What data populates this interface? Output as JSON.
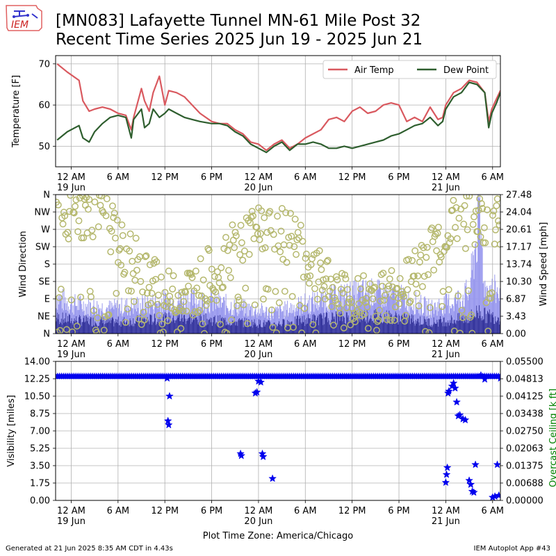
{
  "header": {
    "logo_text": "IEM",
    "title_line1": "[MN083] Lafayette Tunnel MN-61 Mile Post 32",
    "title_line2": "Recent Time Series 2025 Jun 19 - 2025 Jun 21"
  },
  "footer": {
    "generated": "Generated at 21 Jun 2025 8:35 AM CDT in 4.43s",
    "app": "IEM Autoplot App #43"
  },
  "colors": {
    "air_temp": "#d9595f",
    "dew_point": "#2e5e2e",
    "wind_gust": "#9999ee",
    "wind_speed": "#33339a",
    "wind_dir": "#b5b86e",
    "visibility": "#0000ee",
    "ceiling_label": "#008000",
    "grid": "#b0b0b0"
  },
  "chart_data": [
    {
      "type": "line",
      "title": "",
      "ylabel": "Temperature [F]",
      "ylim": [
        45,
        72
      ],
      "y_ticks": [
        50,
        60,
        70
      ],
      "x_range_hours": [
        -2,
        55
      ],
      "x_tick_hours": [
        0,
        6,
        12,
        18,
        24,
        30,
        36,
        42,
        48,
        54
      ],
      "x_tick_labels": [
        "12 AM\n19 Jun",
        "6 AM",
        "12 PM",
        "6 PM",
        "12 AM\n20 Jun",
        "6 AM",
        "12 PM",
        "6 PM",
        "12 AM\n21 Jun",
        "6 AM"
      ],
      "legend": "top-right",
      "grid": true,
      "series": [
        {
          "name": "Air Temp",
          "x": [
            -1.8,
            -0.5,
            1,
            1.5,
            2.3,
            3,
            4,
            5,
            6,
            7,
            7.7,
            8,
            9,
            9.4,
            10,
            10.5,
            11.3,
            12,
            12.5,
            13.5,
            14.5,
            15.5,
            16.5,
            18,
            19,
            20,
            21,
            22,
            23,
            24,
            25,
            26,
            27,
            28,
            29,
            30,
            31,
            32,
            33,
            34,
            35,
            36,
            37,
            38,
            39,
            40,
            41,
            42,
            43,
            44,
            45,
            46,
            47,
            47.6,
            48,
            49,
            50,
            51,
            52,
            53,
            53.5,
            53.9,
            54.5,
            55
          ],
          "values": [
            70,
            68,
            66,
            61,
            58.5,
            59,
            59.5,
            59,
            58,
            57.5,
            54,
            57,
            64,
            61,
            58.5,
            63,
            67,
            60,
            63.5,
            63,
            62,
            60,
            58,
            56,
            55.5,
            55.5,
            54,
            53,
            51,
            50.5,
            49,
            50.5,
            51.5,
            49.5,
            50.5,
            52,
            53,
            54,
            56.5,
            57,
            56,
            58.5,
            59.5,
            58,
            58.5,
            60,
            60.5,
            60,
            56,
            57,
            56,
            59.5,
            56.5,
            57,
            60,
            63,
            64,
            66,
            65.5,
            63,
            56,
            59,
            61.5,
            63.5
          ]
        },
        {
          "name": "Dew Point",
          "x": [
            -1.8,
            -0.5,
            1,
            1.5,
            2.3,
            3,
            4,
            5,
            6,
            7,
            7.7,
            8,
            9,
            9.4,
            10,
            10.5,
            11.3,
            12,
            12.5,
            13.5,
            14.5,
            15.5,
            16.5,
            18,
            19,
            20,
            21,
            22,
            23,
            24,
            25,
            26,
            27,
            28,
            29,
            30,
            31,
            32,
            33,
            34,
            35,
            36,
            37,
            38,
            39,
            40,
            41,
            42,
            43,
            44,
            45,
            46,
            47,
            47.6,
            48,
            49,
            50,
            51,
            52,
            53,
            53.5,
            53.9,
            54.5,
            55
          ],
          "values": [
            51.5,
            53.5,
            55,
            52,
            51,
            53.5,
            55.5,
            57,
            57.5,
            57,
            52,
            56.5,
            59,
            54.5,
            55.5,
            59,
            57,
            58,
            59,
            58,
            57,
            56.5,
            56,
            55.5,
            55.5,
            55,
            53.5,
            52.5,
            50.5,
            49.5,
            48.5,
            50,
            51,
            49,
            50.5,
            50.5,
            51,
            50.5,
            49.5,
            49.5,
            50,
            49.5,
            50,
            50.5,
            51,
            51.5,
            52.5,
            53,
            54,
            55,
            55.5,
            57,
            55,
            56,
            59,
            62,
            63,
            65.5,
            65,
            63,
            54.5,
            58,
            60.5,
            63
          ]
        }
      ]
    },
    {
      "type": "scatter",
      "title": "",
      "ylabel": "Wind Direction",
      "y2label": "Wind Speed [mph]",
      "ylim": [
        0,
        360
      ],
      "y2lim": [
        0,
        27.48
      ],
      "y_tick_labels": [
        "N",
        "NE",
        "E",
        "SE",
        "S",
        "SW",
        "W",
        "NW",
        "N"
      ],
      "y2_tick_labels": [
        "0.00",
        "3.43",
        "6.87",
        "10.30",
        "13.74",
        "17.17",
        "20.61",
        "24.04",
        "27.48"
      ],
      "x_range_hours": [
        -2,
        55
      ],
      "x_tick_hours": [
        0,
        6,
        12,
        18,
        24,
        30,
        36,
        42,
        48,
        54
      ],
      "x_tick_labels": [
        "12 AM\n19 Jun",
        "6 AM",
        "12 PM",
        "6 PM",
        "12 AM\n20 Jun",
        "6 AM",
        "12 PM",
        "6 PM",
        "12 AM\n21 Jun",
        "6 AM"
      ],
      "grid": true,
      "wind_gust_profile": {
        "x": [
          -2,
          0,
          5,
          10,
          14,
          18,
          22,
          26,
          30,
          34,
          38,
          42,
          46,
          49,
          51,
          52.3,
          53,
          55
        ],
        "values": [
          8.0,
          6.5,
          5.5,
          6.5,
          7.5,
          7.0,
          5.5,
          4.5,
          6.5,
          8.0,
          9.0,
          8.0,
          5.5,
          7.0,
          9.0,
          26,
          10,
          9.0
        ]
      },
      "wind_speed_profile": {
        "x": [
          -2,
          0,
          5,
          10,
          14,
          18,
          22,
          26,
          30,
          34,
          38,
          42,
          46,
          49,
          51,
          52.3,
          53,
          55
        ],
        "values": [
          3.5,
          3.0,
          2.5,
          3.0,
          3.5,
          3.0,
          2.5,
          2.0,
          3.0,
          3.5,
          4.0,
          3.5,
          2.5,
          3.0,
          3.5,
          5.0,
          4.0,
          3.5
        ]
      },
      "wind_direction_profile": {
        "x": [
          -2,
          1,
          4,
          7,
          10,
          12,
          16,
          20,
          24,
          28,
          32,
          36,
          40,
          44,
          48,
          51,
          55
        ],
        "values": [
          300,
          310,
          320,
          200,
          150,
          90,
          120,
          200,
          280,
          250,
          140,
          80,
          90,
          150,
          270,
          290,
          300
        ]
      }
    },
    {
      "type": "scatter",
      "title": "",
      "ylabel": "Visibility [miles]",
      "y2label": "Overcast Ceiling [k ft]",
      "ylim": [
        0,
        14
      ],
      "y2lim": [
        0,
        0.055
      ],
      "y_tick_labels": [
        "0.00",
        "1.75",
        "3.50",
        "5.25",
        "7.00",
        "8.75",
        "10.50",
        "12.25",
        "14.00"
      ],
      "y2_tick_labels": [
        "0.00000",
        "0.00688",
        "0.01375",
        "0.02063",
        "0.02750",
        "0.03438",
        "0.04125",
        "0.04813",
        "0.05500"
      ],
      "x_range_hours": [
        -2,
        55
      ],
      "x_tick_hours": [
        0,
        6,
        12,
        18,
        24,
        30,
        36,
        42,
        48,
        54
      ],
      "x_tick_labels": [
        "12 AM\n19 Jun",
        "6 AM",
        "12 PM",
        "6 PM",
        "12 AM\n20 Jun",
        "6 AM",
        "12 PM",
        "6 PM",
        "12 AM\n21 Jun",
        "6 AM"
      ],
      "xlabel": "Plot Time Zone: America/Chicago",
      "grid": true,
      "baseline_visibility": 12.5,
      "x": [
        12.3,
        12.6,
        12.5,
        12.4,
        21.7,
        21.8,
        23.6,
        23.8,
        24.0,
        24.3,
        24.5,
        24.6,
        25.8,
        48.0,
        48.1,
        48.2,
        48.3,
        48.4,
        48.8,
        49.0,
        49.2,
        49.4,
        49.6,
        49.8,
        50.2,
        50.5,
        51.0,
        51.2,
        51.4,
        51.6,
        51.8,
        53.0,
        52.5,
        54.0,
        54.3,
        54.6,
        54.8,
        55.0
      ],
      "values": [
        12.3,
        10.5,
        7.6,
        8.0,
        4.7,
        4.5,
        10.8,
        10.9,
        12.0,
        11.9,
        4.7,
        4.4,
        2.2,
        1.8,
        2.6,
        3.3,
        10.8,
        11.0,
        11.5,
        11.8,
        11.3,
        9.9,
        8.5,
        8.6,
        8.2,
        8.1,
        2.0,
        1.6,
        0.9,
        0.8,
        3.6,
        12.2,
        12.6,
        0.3,
        0.4,
        3.6,
        0.5,
        12.3
      ]
    }
  ]
}
